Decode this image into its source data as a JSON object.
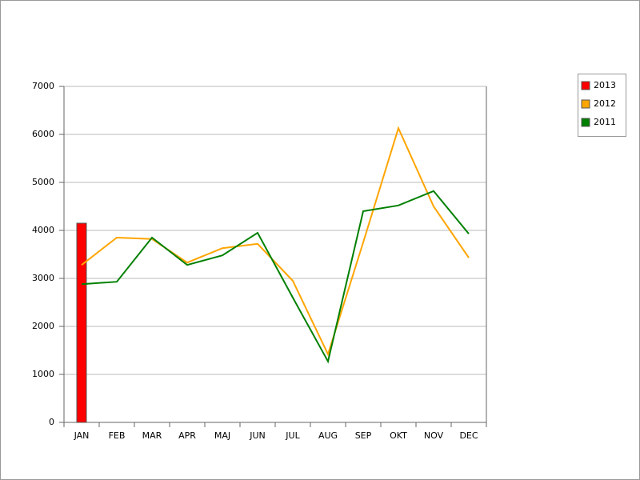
{
  "chart_data": {
    "type": "combo",
    "categories": [
      "JAN",
      "FEB",
      "MAR",
      "APR",
      "MAJ",
      "JUN",
      "JUL",
      "AUG",
      "SEP",
      "OKT",
      "NOV",
      "DEC"
    ],
    "series": [
      {
        "name": "2013",
        "type": "bar",
        "color": "#ff0000",
        "values": [
          4150,
          null,
          null,
          null,
          null,
          null,
          null,
          null,
          null,
          null,
          null,
          null
        ]
      },
      {
        "name": "2012",
        "type": "line",
        "color": "#ffa500",
        "values": [
          3280,
          3850,
          3820,
          3330,
          3630,
          3720,
          2950,
          1420,
          3750,
          6130,
          4500,
          3430
        ]
      },
      {
        "name": "2011",
        "type": "line",
        "color": "#008000",
        "values": [
          2880,
          2930,
          3850,
          3280,
          3480,
          3950,
          2600,
          1270,
          4400,
          4520,
          4820,
          3930
        ]
      }
    ],
    "ylim": [
      0,
      7000
    ],
    "yticks": [
      0,
      1000,
      2000,
      3000,
      4000,
      5000,
      6000,
      7000
    ],
    "grid": true,
    "legend": "right"
  }
}
